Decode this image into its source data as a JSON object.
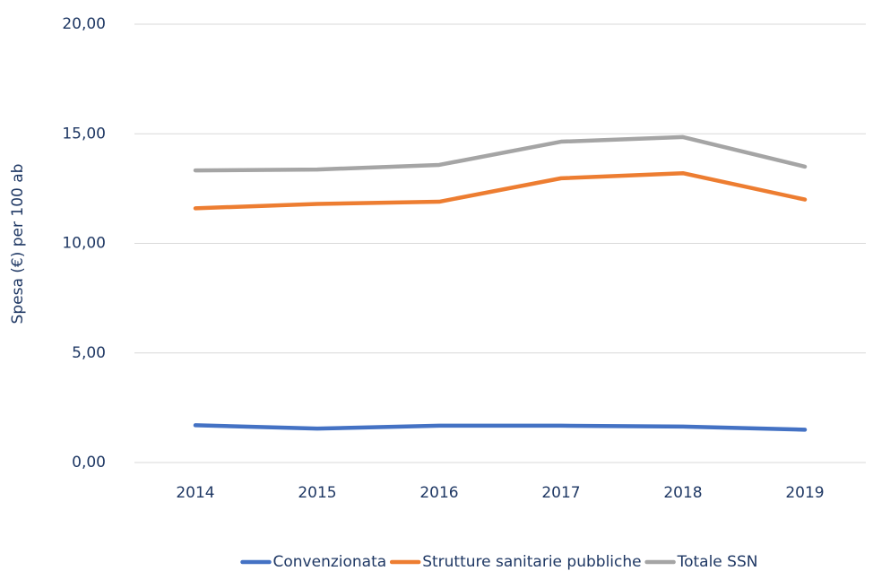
{
  "chart_data": {
    "type": "line",
    "y_label": "Spesa (€) per 100 ab",
    "categories": [
      "2014",
      "2015",
      "2016",
      "2017",
      "2018",
      "2019"
    ],
    "series": [
      {
        "name": "Convenzionata",
        "color": "#4472c4",
        "values": [
          1.7,
          1.55,
          1.68,
          1.68,
          1.64,
          1.5
        ]
      },
      {
        "name": "Strutture sanitarie pubbliche",
        "color": "#ed7d31",
        "values": [
          11.6,
          11.8,
          11.9,
          12.97,
          13.2,
          12.0
        ]
      },
      {
        "name": "Totale SSN",
        "color": "#a5a5a5",
        "values": [
          13.33,
          13.37,
          13.58,
          14.64,
          14.85,
          13.5
        ]
      }
    ],
    "ylim": [
      0,
      20
    ],
    "yticks": [
      {
        "value": 0,
        "label": "0,00"
      },
      {
        "value": 5,
        "label": "5,00"
      },
      {
        "value": 10,
        "label": "10,00"
      },
      {
        "value": 15,
        "label": "15,00"
      },
      {
        "value": 20,
        "label": "20,00"
      }
    ],
    "grid": true,
    "legend": "bottom"
  }
}
